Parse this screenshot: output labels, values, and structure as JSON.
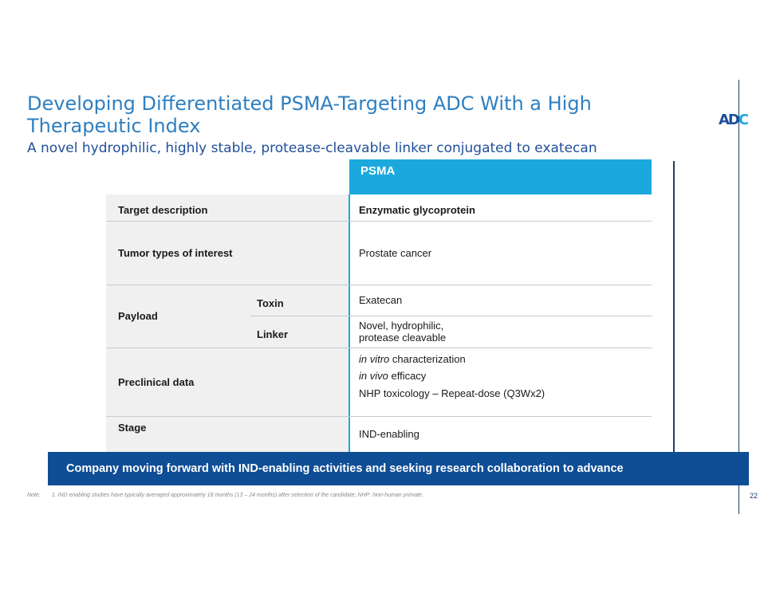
{
  "slide": {
    "title": "Developing Differentiated PSMA-Targeting ADC With a High Therapeutic Index",
    "subtitle": "A novel hydrophilic, highly stable, protease-cleavable linker conjugated to exatecan",
    "logo_text": "ADC",
    "page_number": "22"
  },
  "table": {
    "column_header": "PSMA",
    "rows": {
      "target": {
        "label": "Target description",
        "value": "Enzymatic glycoprotein"
      },
      "tumor": {
        "label": "Tumor types of interest",
        "value": "Prostate cancer"
      },
      "payload": {
        "label": "Payload",
        "toxin_label": "Toxin",
        "toxin_value": "Exatecan",
        "linker_label": "Linker",
        "linker_value_line1": "Novel, hydrophilic,",
        "linker_value_line2": "protease cleavable"
      },
      "preclinical": {
        "label": "Preclinical data",
        "item1_italic": "in vitro",
        "item1_rest": " characterization",
        "item2_italic": "in vivo",
        "item2_rest": " efficacy",
        "item3": "NHP toxicology – Repeat-dose (Q3Wx2)"
      },
      "stage": {
        "label": "Stage",
        "value": "IND-enabling"
      }
    }
  },
  "banner": {
    "text": "Company moving forward with IND-enabling activities and seeking research collaboration to advance"
  },
  "footnote": {
    "label": "Note:",
    "text": "1. IND enabling studies have typically averaged approximately 18 months (13 – 24 months) after selection of the candidate; NHP: Non-human primate."
  },
  "colors": {
    "title": "#2e7fc1",
    "subtitle": "#1f4f99",
    "header_fill": "#1ba9dd",
    "banner_fill": "#0f4d95",
    "label_panel": "#f0f0f0"
  }
}
